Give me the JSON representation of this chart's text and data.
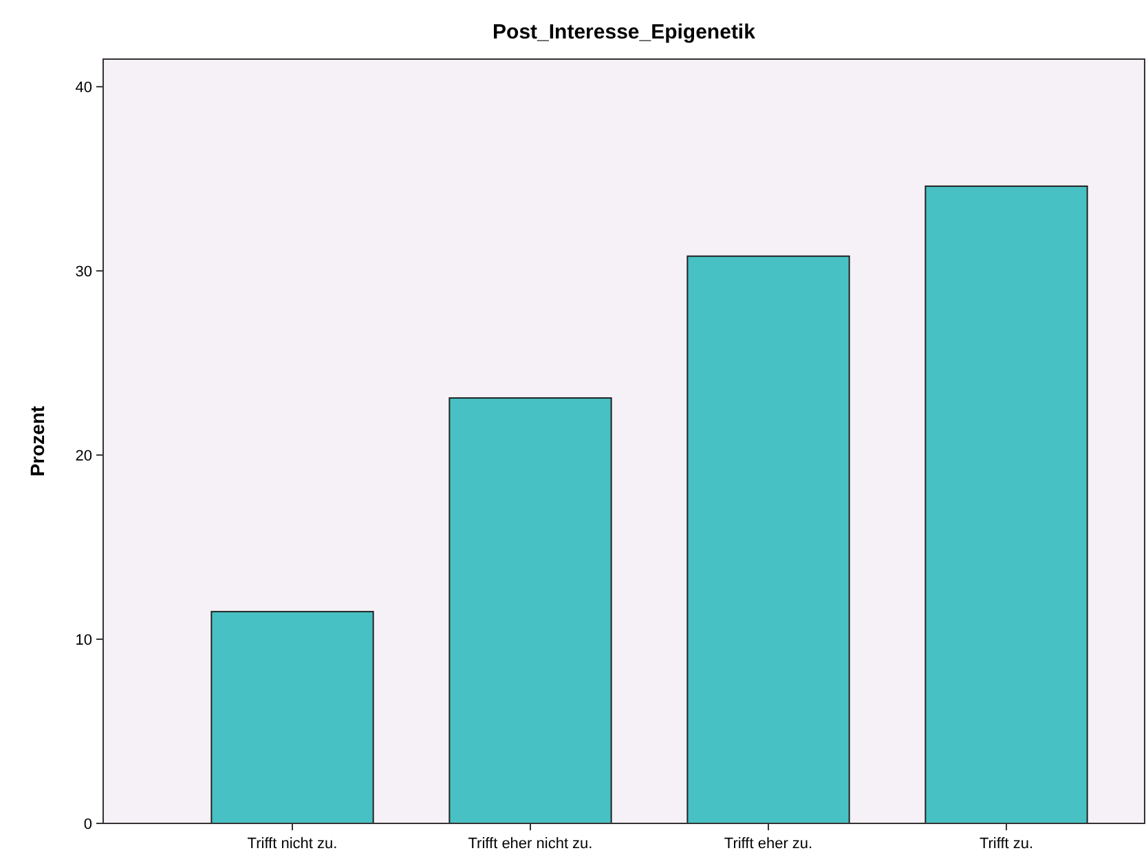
{
  "chart_data": {
    "type": "bar",
    "title": "Post_Interesse_Epigenetik",
    "ylabel": "Prozent",
    "categories": [
      "Trifft nicht zu.",
      "Trifft eher nicht zu.",
      "Trifft eher zu.",
      "Trifft zu."
    ],
    "values": [
      11.5,
      23.1,
      30.8,
      34.6
    ],
    "color": "#48c1c4",
    "ylim": [
      0,
      41.5
    ],
    "yticks": [
      0,
      10,
      20,
      30,
      40
    ],
    "grid": false
  }
}
